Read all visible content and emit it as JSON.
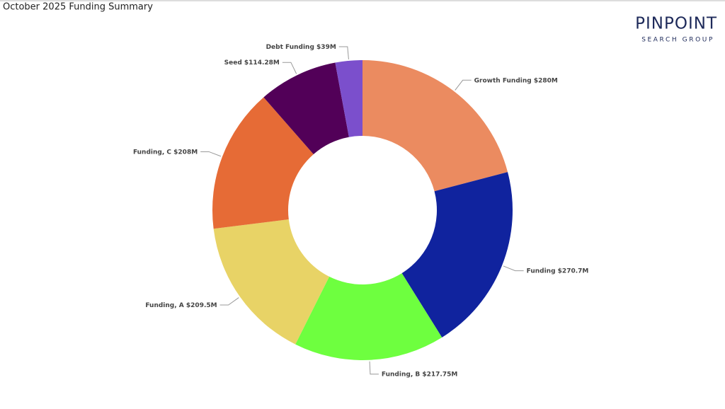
{
  "chart_data": {
    "type": "donut",
    "title": "October 2025 Funding Summary",
    "categories": [
      "Growth Funding",
      "Funding",
      "Funding, B",
      "Funding, A",
      "Funding, C",
      "Seed",
      "Debt Funding"
    ],
    "values": [
      280,
      270.7,
      217.75,
      209.5,
      208,
      114.28,
      39
    ],
    "value_labels": [
      "$280M",
      "$270.7M",
      "$217.75M",
      "$209.5M",
      "$208M",
      "$114.28M",
      "$39M"
    ],
    "colors": [
      "#eb8b60",
      "#10239e",
      "#6eff3f",
      "#e8d366",
      "#e66b36",
      "#520058",
      "#7b4fcc"
    ]
  },
  "logo": {
    "name": "PINPOINT",
    "tagline": "SEARCH GROUP"
  }
}
